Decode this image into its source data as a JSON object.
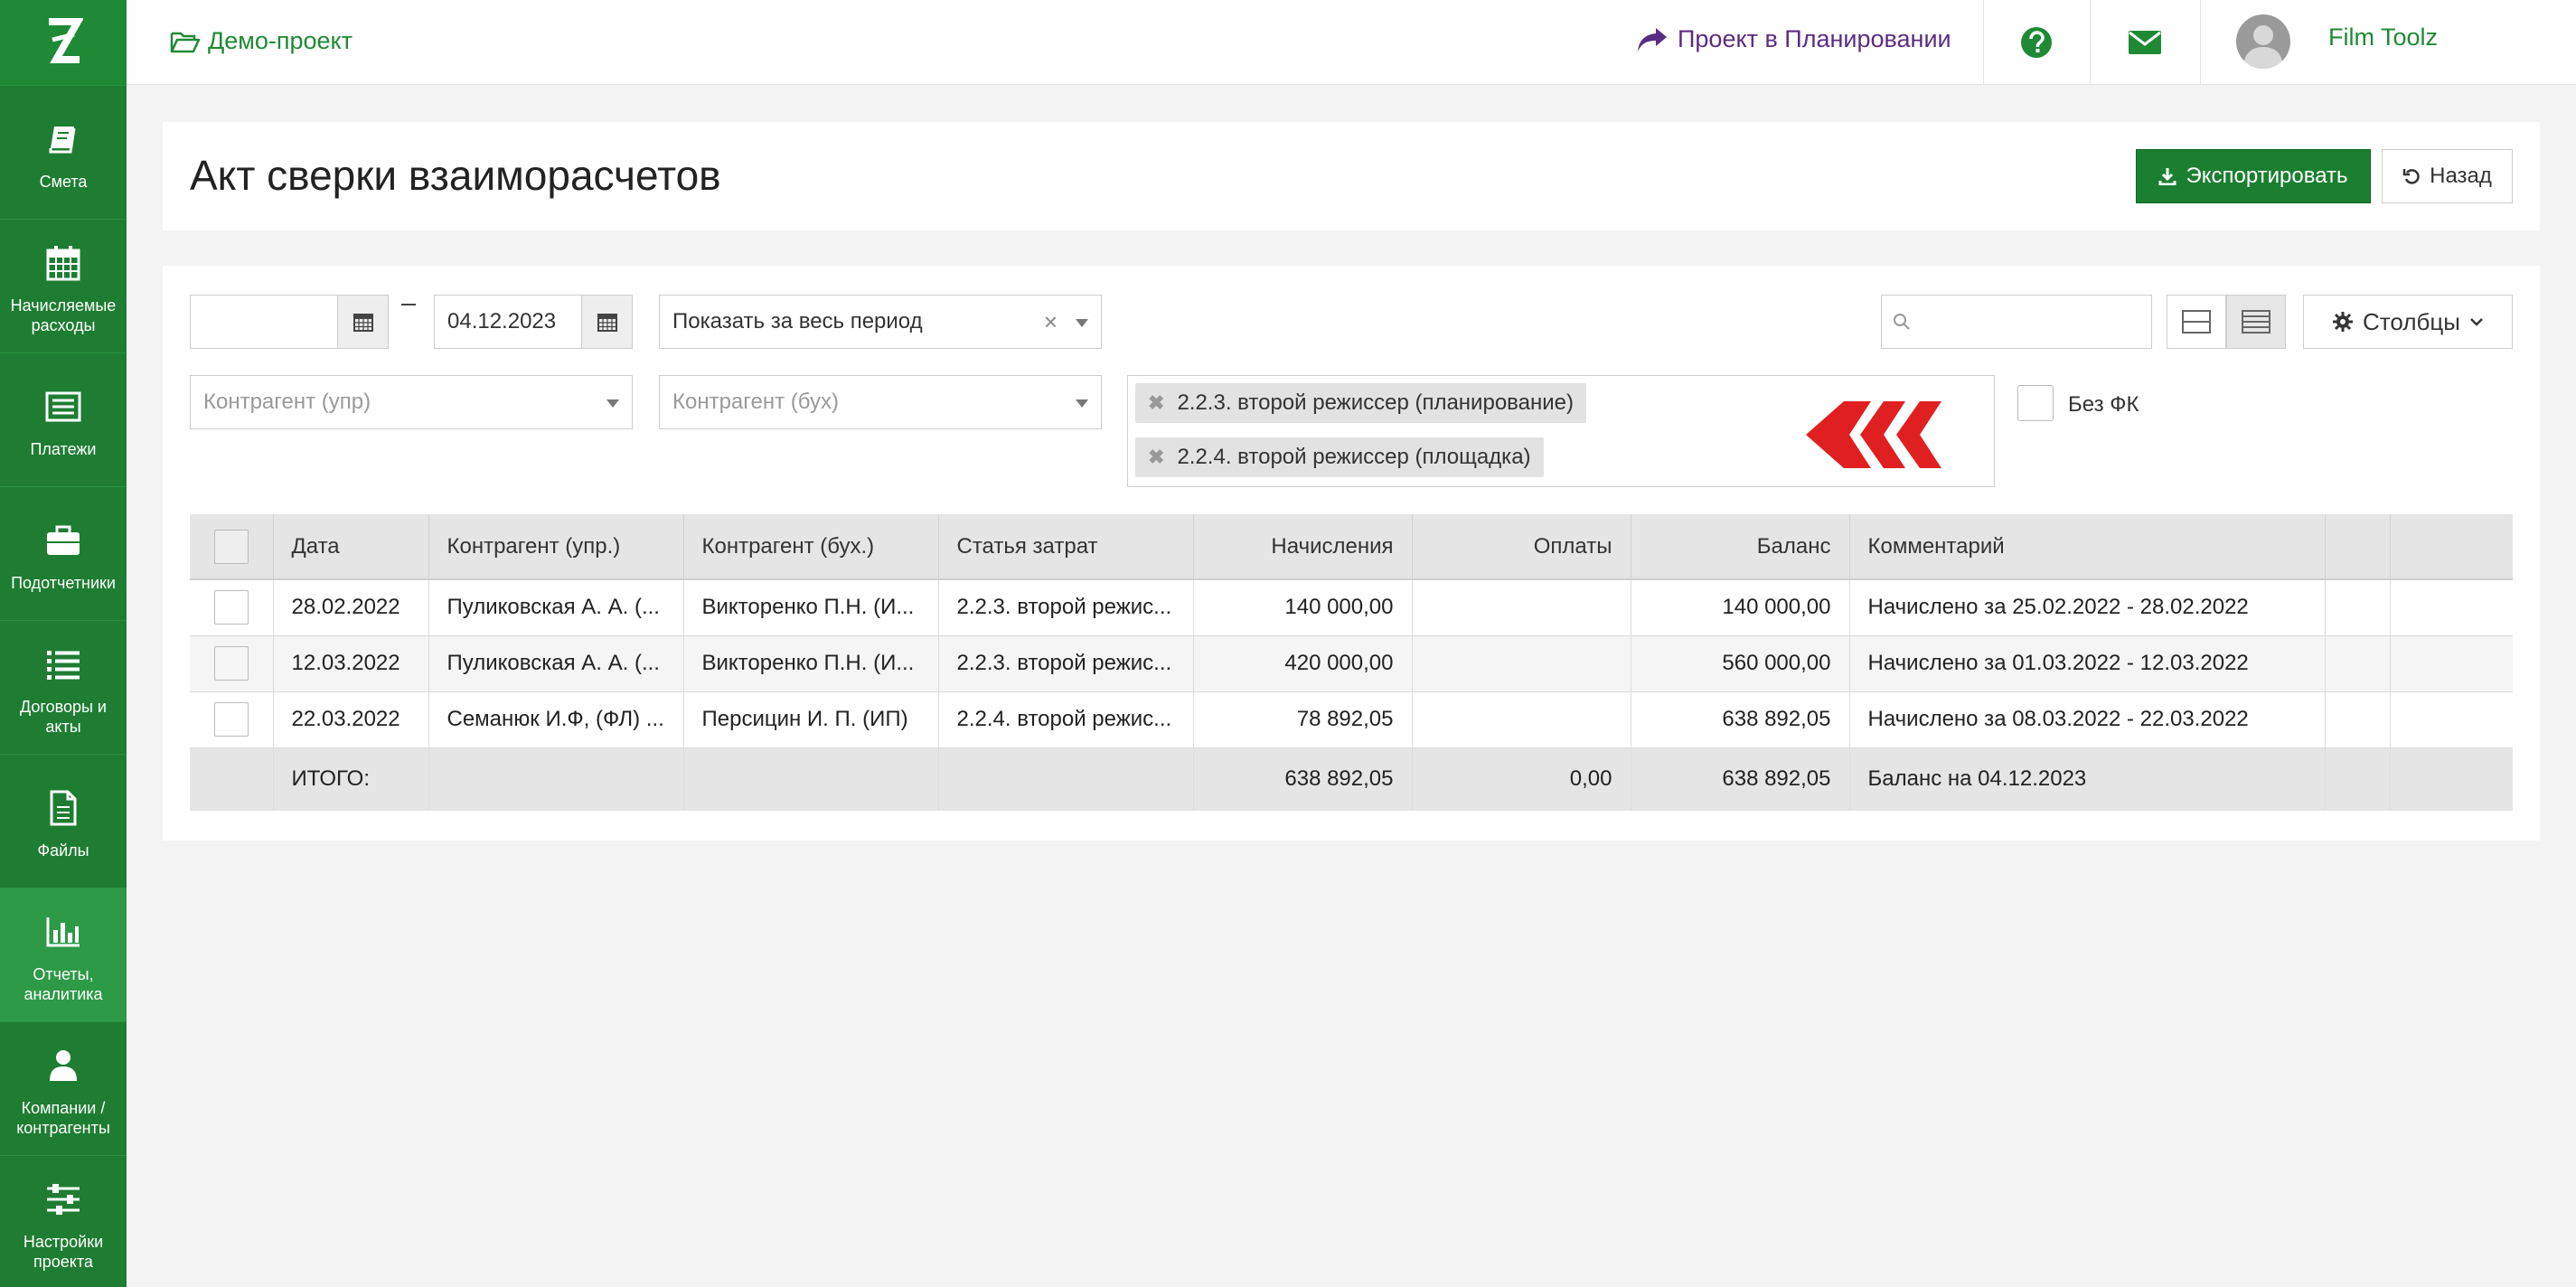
{
  "breadcrumb": {
    "project": "Демо-проект"
  },
  "header": {
    "plan_link": "Проект в Планировании",
    "username": "Film Toolz",
    "lang": "RU"
  },
  "sidebar": {
    "items": [
      {
        "label": "Смета",
        "icon": "book-icon"
      },
      {
        "label": "Начисляемые расходы",
        "icon": "calendar-icon"
      },
      {
        "label": "Платежи",
        "icon": "list-card-icon"
      },
      {
        "label": "Подотчетники",
        "icon": "briefcase-icon"
      },
      {
        "label": "Договоры и акты",
        "icon": "list-icon"
      },
      {
        "label": "Файлы",
        "icon": "file-icon"
      },
      {
        "label": "Отчеты, аналитика",
        "icon": "bar-chart-icon"
      },
      {
        "label": "Компании / контрагенты",
        "icon": "user-icon"
      },
      {
        "label": "Настройки проекта",
        "icon": "sliders-icon"
      }
    ]
  },
  "page": {
    "title": "Акт сверки взаиморасчетов",
    "export_label": "Экспортировать",
    "back_label": "Назад"
  },
  "filters": {
    "date_from": "",
    "date_to": "04.12.2023",
    "period": "Показать за весь период",
    "counterparty_mgmt_placeholder": "Контрагент (упр)",
    "counterparty_acc_placeholder": "Контрагент (бух)",
    "tags": [
      "2.2.3. второй режиссер (планирование)",
      "2.2.4. второй режиссер (площадка)"
    ],
    "no_fc_label": "Без ФК",
    "search_value": "",
    "columns_label": "Столбцы"
  },
  "table": {
    "headers": [
      "Дата",
      "Контрагент (упр.)",
      "Контрагент (бух.)",
      "Статья затрат",
      "Начисления",
      "Оплаты",
      "Баланс",
      "Комментарий"
    ],
    "rows": [
      {
        "date": "28.02.2022",
        "cp_mgmt": "Пуликовская А. А. (...",
        "cp_acc": "Викторенко П.Н. (И...",
        "article": "2.2.3. второй режис...",
        "accruals": "140 000,00",
        "payments": "",
        "balance": "140 000,00",
        "comment": "Начислено за 25.02.2022 - 28.02.2022"
      },
      {
        "date": "12.03.2022",
        "cp_mgmt": "Пуликовская А. А. (...",
        "cp_acc": "Викторенко П.Н. (И...",
        "article": "2.2.3. второй режис...",
        "accruals": "420 000,00",
        "payments": "",
        "balance": "560 000,00",
        "comment": "Начислено за 01.03.2022 - 12.03.2022"
      },
      {
        "date": "22.03.2022",
        "cp_mgmt": "Семанюк И.Ф, (ФЛ) ...",
        "cp_acc": "Персицин И. П. (ИП)",
        "article": "2.2.4. второй режис...",
        "accruals": "78 892,05",
        "payments": "",
        "balance": "638 892,05",
        "comment": "Начислено за 08.03.2022 - 22.03.2022"
      }
    ],
    "total": {
      "label": "ИТОГО:",
      "accruals": "638 892,05",
      "payments": "0,00",
      "balance": "638 892,05",
      "comment": "Баланс на 04.12.2023"
    }
  },
  "colors": {
    "brand_green": "#1f8a35",
    "plan_purple": "#5b2c83",
    "logo_red": "#e02020"
  }
}
